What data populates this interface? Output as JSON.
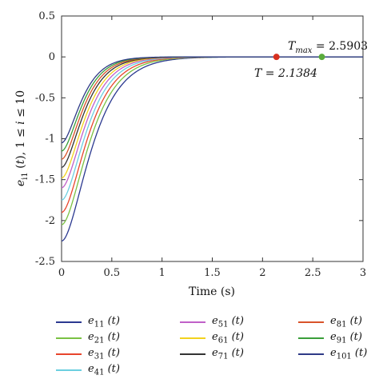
{
  "chart_data": {
    "type": "line",
    "title": "",
    "xlabel": "Time (s)",
    "ylabel": "e_i1 (t), 1 ≤ i ≤ 10",
    "xlim": [
      0,
      3
    ],
    "ylim": [
      -2.5,
      0.5
    ],
    "xticks": [
      "0",
      "0.5",
      "1",
      "1.5",
      "2",
      "2.5",
      "3"
    ],
    "yticks": [
      "0.5",
      "0",
      "-0.5",
      "-1",
      "-1.5",
      "-2",
      "-2.5"
    ],
    "grid": false,
    "legend_placement": "below",
    "series": [
      {
        "name": "e11 (t)",
        "label_base": "e",
        "label_sub": "11",
        "label_arg": "(t)",
        "color": "#2b3990",
        "y0": -2.25,
        "rate": 5.6
      },
      {
        "name": "e21 (t)",
        "label_base": "e",
        "label_sub": "21",
        "label_arg": "(t)",
        "color": "#7ac143",
        "y0": -2.05,
        "rate": 5.9
      },
      {
        "name": "e31 (t)",
        "label_base": "e",
        "label_sub": "31",
        "label_arg": "(t)",
        "color": "#e8452c",
        "y0": -1.9,
        "rate": 6.2
      },
      {
        "name": "e41 (t)",
        "label_base": "e",
        "label_sub": "41",
        "label_arg": "(t)",
        "color": "#6ccfe0",
        "y0": -1.75,
        "rate": 6.5
      },
      {
        "name": "e51 (t)",
        "label_base": "e",
        "label_sub": "51",
        "label_arg": "(t)",
        "color": "#c060c8",
        "y0": -1.6,
        "rate": 6.8
      },
      {
        "name": "e61 (t)",
        "label_base": "e",
        "label_sub": "61",
        "label_arg": "(t)",
        "color": "#f2d21e",
        "y0": -1.48,
        "rate": 7.1
      },
      {
        "name": "e71 (t)",
        "label_base": "e",
        "label_sub": "71",
        "label_arg": "(t)",
        "color": "#333333",
        "y0": -1.35,
        "rate": 7.4
      },
      {
        "name": "e81 (t)",
        "label_base": "e",
        "label_sub": "81",
        "label_arg": "(t)",
        "color": "#d9532a",
        "y0": -1.25,
        "rate": 7.7
      },
      {
        "name": "e91 (t)",
        "label_base": "e",
        "label_sub": "91",
        "label_arg": "(t)",
        "color": "#3a9e3a",
        "y0": -1.15,
        "rate": 8.0
      },
      {
        "name": "e101 (t)",
        "label_base": "e",
        "label_sub": "101",
        "label_arg": "(t)",
        "color": "#2e3a87",
        "y0": -1.05,
        "rate": 8.3
      }
    ],
    "markers": [
      {
        "x": 2.1384,
        "y": 0,
        "color": "#d7301f",
        "label": "T = 2.1384",
        "label_position": "below-left"
      },
      {
        "x": 2.5903,
        "y": 0,
        "color": "#5aac3c",
        "label": "T_max = 2.5903",
        "label_position": "above"
      }
    ],
    "annotations": {
      "t_text": "T = 2.1384",
      "tmax_base": "T",
      "tmax_sub": "max",
      "tmax_value": " = 2.5903"
    }
  }
}
